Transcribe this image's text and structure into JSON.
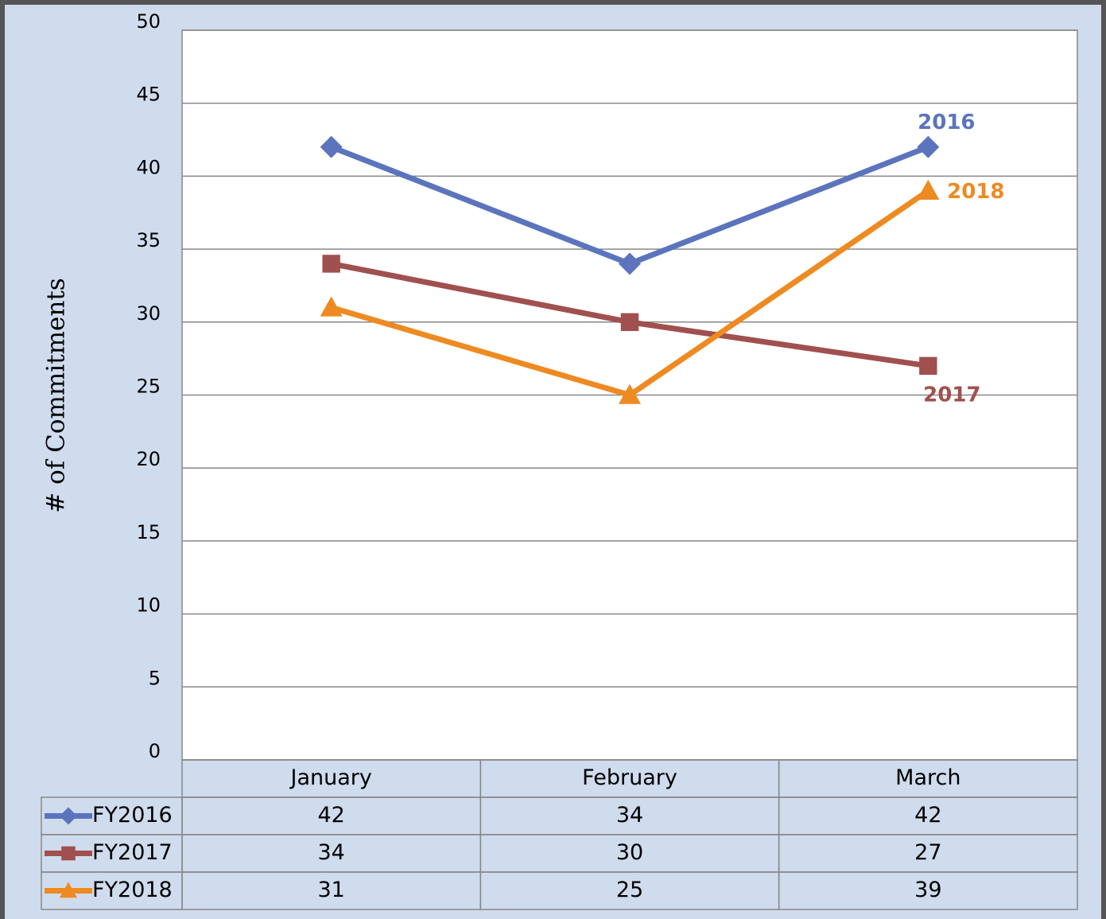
{
  "chart_data": {
    "type": "line",
    "y_label": "# of Commitments",
    "categories": [
      "January",
      "February",
      "March"
    ],
    "series": [
      {
        "name": "FY2016",
        "color": "#5b74bd",
        "marker": "diamond",
        "values": [
          42,
          34,
          42
        ]
      },
      {
        "name": "FY2017",
        "color": "#a0504e",
        "marker": "square",
        "values": [
          34,
          30,
          27
        ]
      },
      {
        "name": "FY2018",
        "color": "#ee8a22",
        "marker": "triangle",
        "values": [
          31,
          25,
          39
        ]
      }
    ],
    "annotations": [
      {
        "text": "2016",
        "series": 0
      },
      {
        "text": "2017",
        "series": 1
      },
      {
        "text": "2018",
        "series": 2
      }
    ],
    "ylim": [
      0,
      50
    ],
    "yticks": [
      0,
      5,
      10,
      15,
      20,
      25,
      30,
      35,
      40,
      45,
      50
    ],
    "grid": true,
    "data_table": true
  }
}
